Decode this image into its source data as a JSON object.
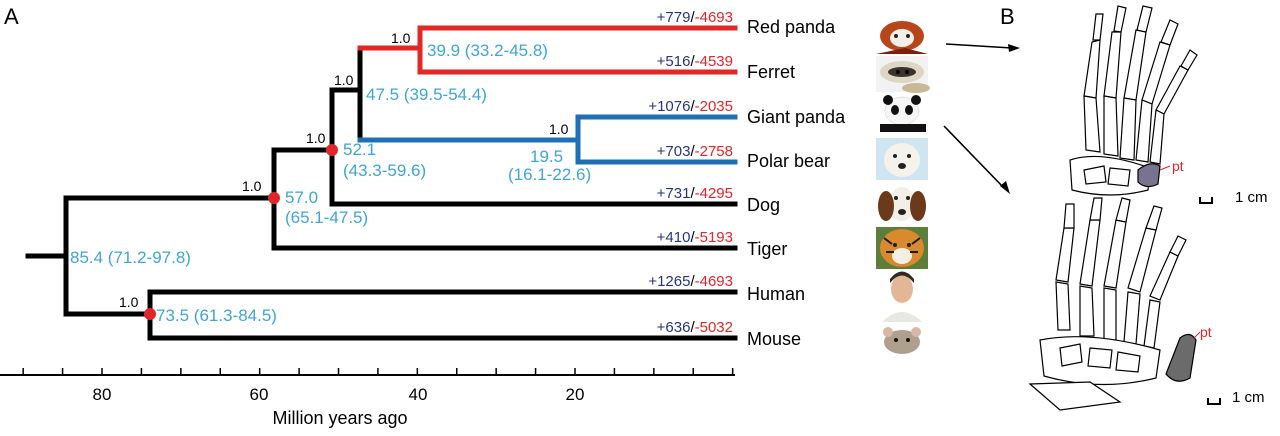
{
  "panels": {
    "a": "A",
    "b": "B"
  },
  "tree": {
    "colors": {
      "black": "#000000",
      "red_clade": "#e32626",
      "blue_clade": "#1f6fb5",
      "age": "#3fa5d6",
      "node": "#e0262b",
      "plus": "#27357e",
      "minus": "#e0262b"
    },
    "support_values": [
      "1.0",
      "1.0",
      "1.0",
      "1.0",
      "1.0",
      "1.0",
      "1.0"
    ],
    "node_ages": [
      "39.9 (33.2-45.8)",
      "47.5 (39.5-54.4)",
      "19.5",
      "(16.1-22.6)",
      "52.1",
      "(43.3-59.6)",
      "57.0",
      "(65.1-47.5)",
      "85.4 (71.2-97.8)",
      "73.5 (61.3-84.5)"
    ],
    "species": [
      {
        "name": "Red panda",
        "gain": "+779",
        "loss": "-4693",
        "icon": "red-panda-photo"
      },
      {
        "name": "Ferret",
        "gain": "+516",
        "loss": "-4539",
        "icon": "ferret-photo"
      },
      {
        "name": "Giant panda",
        "gain": "+1076",
        "loss": "-2035",
        "icon": "giant-panda-photo"
      },
      {
        "name": "Polar bear",
        "gain": "+703",
        "loss": "-2758",
        "icon": "polar-bear-photo"
      },
      {
        "name": "Dog",
        "gain": "+731",
        "loss": "-4295",
        "icon": "dog-photo"
      },
      {
        "name": "Tiger",
        "gain": "+410",
        "loss": "-5193",
        "icon": "tiger-photo"
      },
      {
        "name": "Human",
        "gain": "+1265",
        "loss": "-4693",
        "icon": "human-photo"
      },
      {
        "name": "Mouse",
        "gain": "+636",
        "loss": "-5032",
        "icon": "mouse-photo"
      }
    ]
  },
  "axis": {
    "tick_labels": [
      "80",
      "60",
      "40",
      "20"
    ],
    "title": "Million years ago"
  },
  "panel_b": {
    "label_pt": "pt",
    "scale_label": "1 cm"
  }
}
